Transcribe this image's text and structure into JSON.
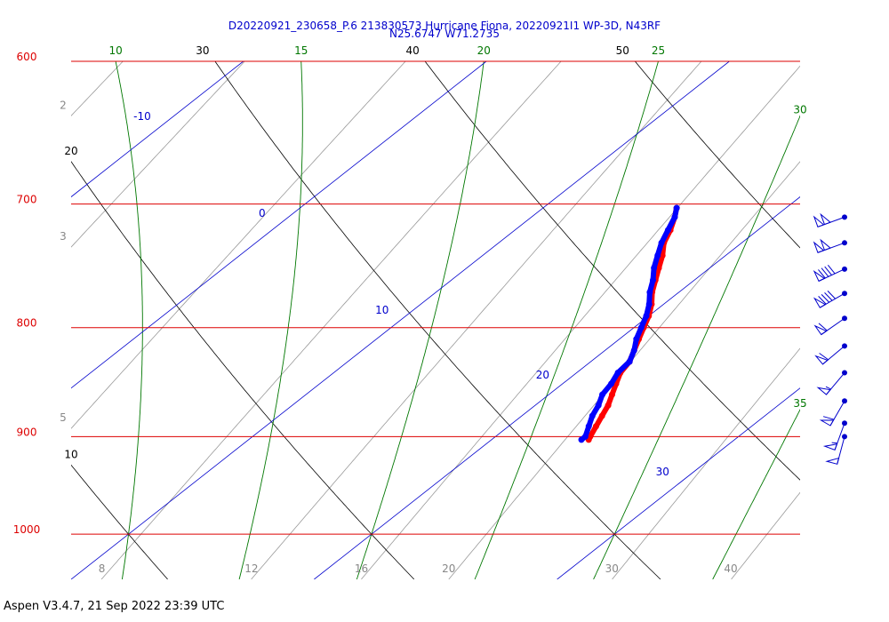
{
  "chart_data": {
    "type": "skew-t",
    "title": "D20220921_230658_P.6 213830573 Hurricane Fiona, 20220921I1 WP-3D, N43RF",
    "subtitle": "N25.6747 W71.2735",
    "footer": "Aspen V3.4.7, 21 Sep 2022  23:39 UTC",
    "log_y": true,
    "ylim": [
      1050,
      600
    ],
    "yticks": [
      600,
      700,
      800,
      900,
      1000
    ],
    "xlim": [
      10,
      40
    ],
    "isotherms": [
      -10,
      0,
      10,
      20,
      30
    ],
    "dry_adiabats": [
      10,
      20,
      30,
      40,
      50
    ],
    "moist_adiabats": [
      10,
      15,
      20,
      25,
      30,
      35
    ],
    "mixing_ratios": [
      2,
      3,
      5,
      8,
      12,
      16,
      20,
      30,
      40
    ],
    "pressure": [
      703,
      710,
      720,
      730,
      740,
      750,
      760,
      770,
      780,
      790,
      800,
      810,
      820,
      830,
      840,
      850,
      860,
      870,
      880,
      890,
      900,
      903
    ],
    "series": [
      {
        "color": "#ff0000",
        "values": [
          15.5,
          15.9,
          16.4,
          16.8,
          17.4,
          17.9,
          18.4,
          18.9,
          19.5,
          20.0,
          20.4,
          20.8,
          21.2,
          21.6,
          21.8,
          22.2,
          22.6,
          23.0,
          23.3,
          23.6,
          23.9,
          24.0
        ]
      },
      {
        "color": "#0000ff",
        "values": [
          15.5,
          15.9,
          16.3,
          16.7,
          17.2,
          17.7,
          18.3,
          18.8,
          19.4,
          19.9,
          20.3,
          20.7,
          21.2,
          21.6,
          21.7,
          22.0,
          22.2,
          22.6,
          22.9,
          23.3,
          23.7,
          23.7
        ]
      }
    ],
    "wind_pressure": [
      710,
      730,
      751,
      771,
      792,
      816,
      840,
      866,
      887,
      900
    ],
    "wind_speed": [
      100,
      100,
      90,
      90,
      60,
      60,
      55,
      60,
      55,
      50
    ],
    "wind_direction": [
      250,
      250,
      245,
      240,
      235,
      230,
      220,
      210,
      200,
      195
    ],
    "wind_color": "#0000cc"
  }
}
